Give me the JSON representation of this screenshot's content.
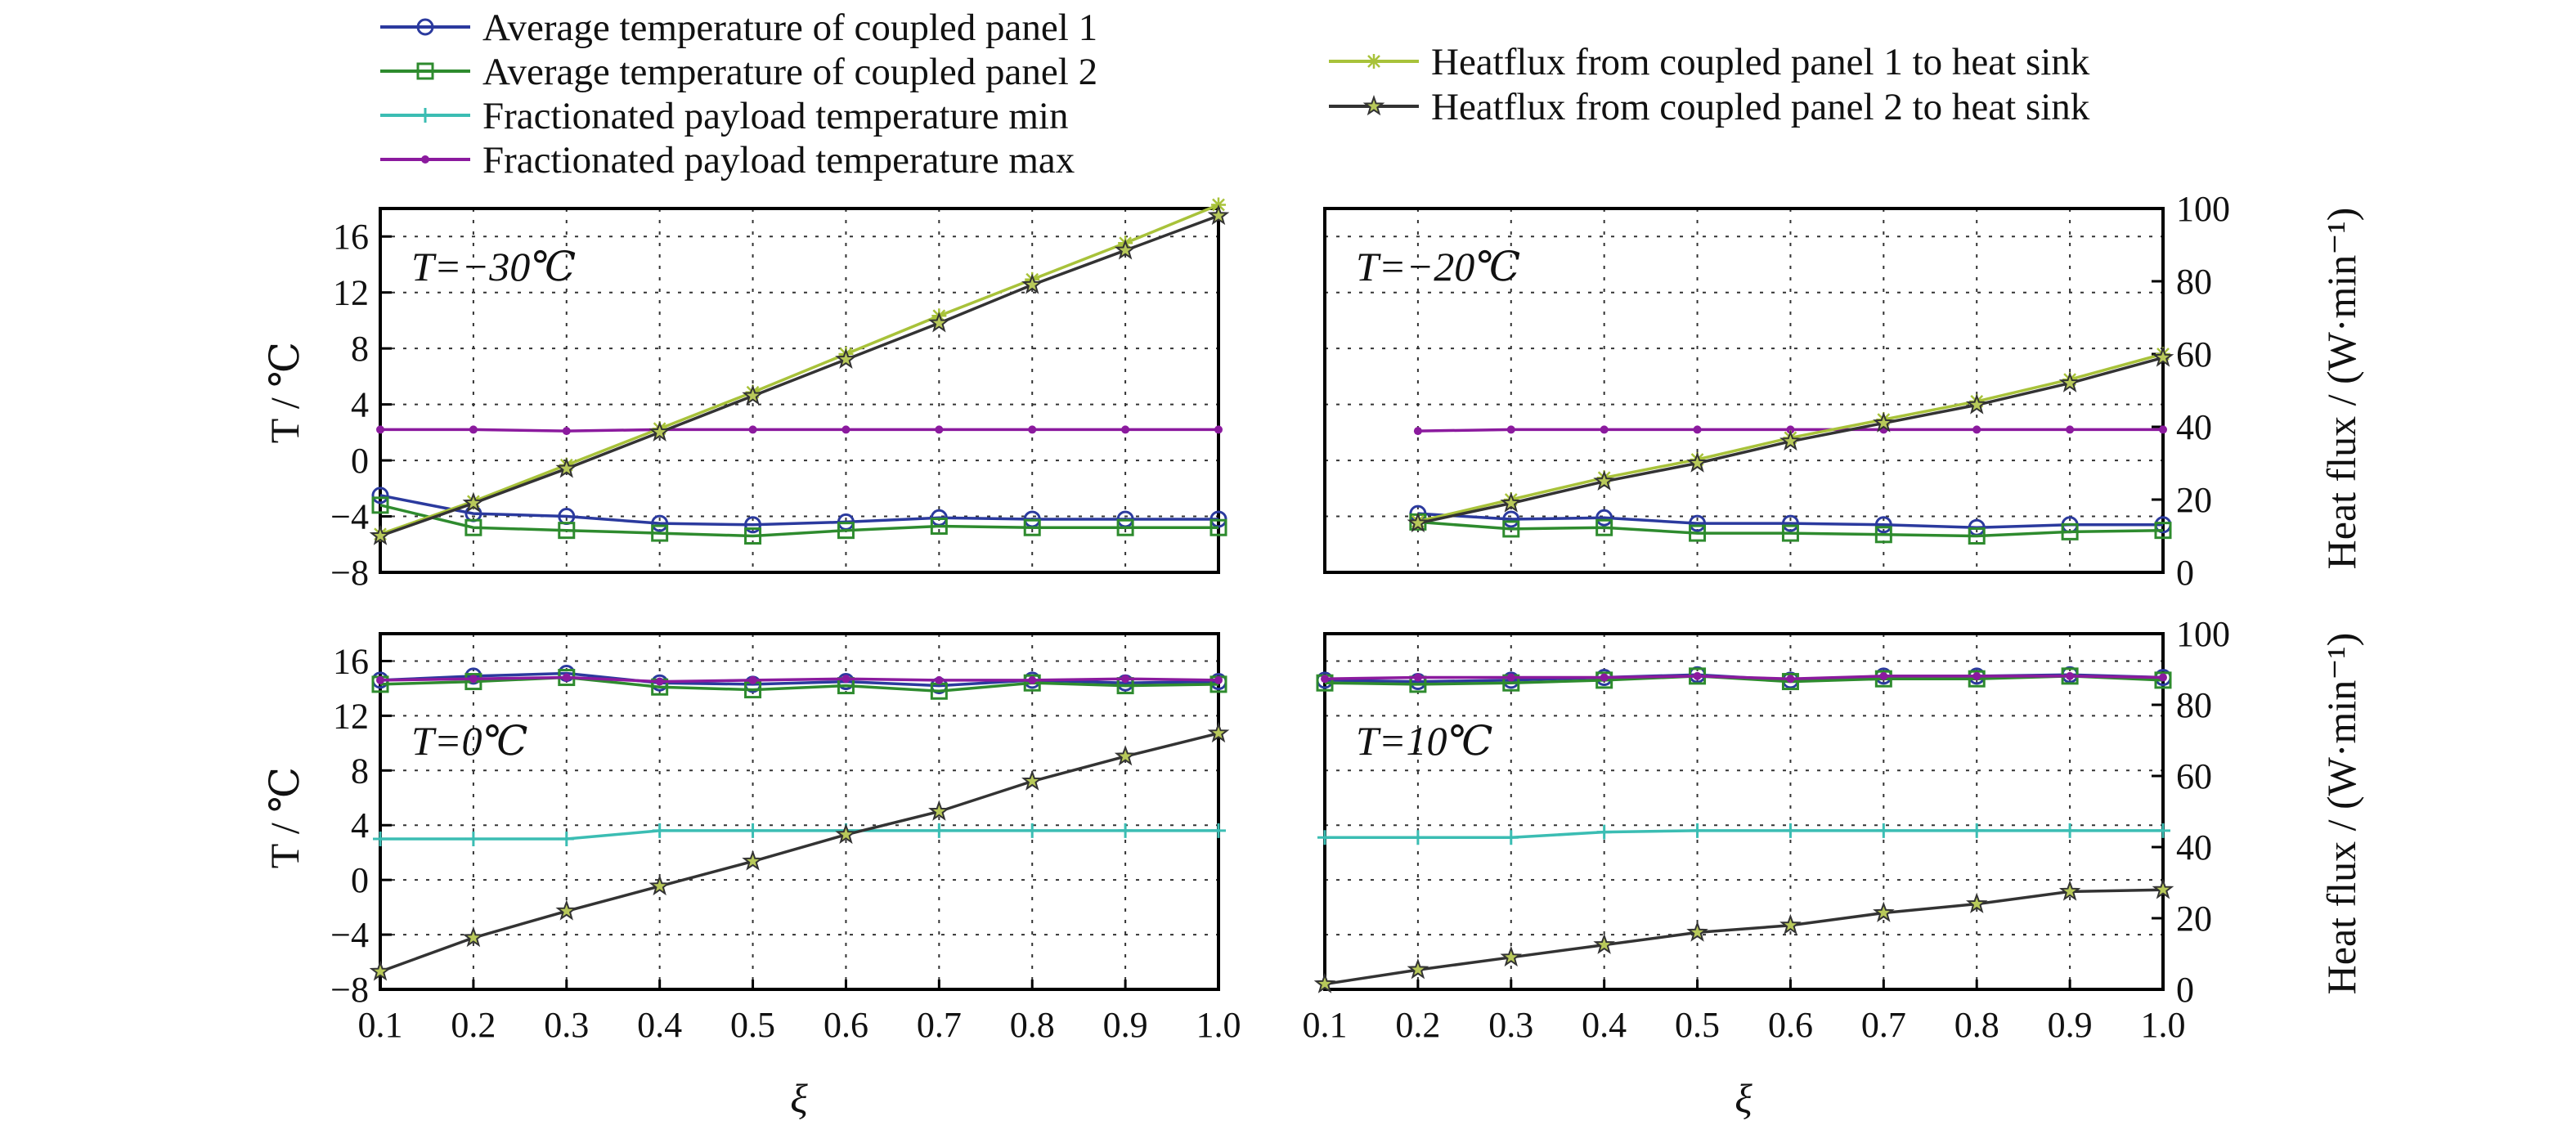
{
  "chart_data": {
    "type": "line",
    "x_label": "ξ",
    "y_label_left": "T / ℃",
    "y_label_right": "Heat flux / (W·min⁻¹)",
    "x_ticks": [
      "0.1",
      "0.2",
      "0.3",
      "0.4",
      "0.5",
      "0.6",
      "0.7",
      "0.8",
      "0.9",
      "1.0"
    ],
    "y_left_ticks": [
      "16",
      "12",
      "8",
      "4",
      "0",
      "−4",
      "−8"
    ],
    "y_right_ticks": [
      "100",
      "80",
      "60",
      "40",
      "20",
      "0"
    ],
    "xlim": [
      0.1,
      1.0
    ],
    "ylim_left": [
      -8,
      18
    ],
    "ylim_right": [
      0,
      100
    ],
    "grid": true,
    "legend_position": "top",
    "legend": [
      {
        "label": "Average temperature of coupled panel 1",
        "color": "#2b3a9e",
        "marker": "circle"
      },
      {
        "label": "Average temperature of coupled panel 2",
        "color": "#2e8b2e",
        "marker": "square"
      },
      {
        "label": "Fractionated payload temperature min",
        "color": "#3bbdb3",
        "marker": "plus"
      },
      {
        "label": "Fractionated payload temperature max",
        "color": "#8b1a9e",
        "marker": "dot"
      },
      {
        "label": "Heatflux from coupled panel 1 to heat sink",
        "color": "#a8c23a",
        "marker": "asterisk"
      },
      {
        "label": "Heatflux from coupled panel 2 to heat sink",
        "color": "#333333",
        "marker": "star"
      }
    ],
    "panels": [
      {
        "annotation": "T=−30℃",
        "x": [
          0.1,
          0.2,
          0.3,
          0.4,
          0.5,
          0.6,
          0.7,
          0.8,
          0.9,
          1.0
        ],
        "series": [
          {
            "name": "Average temperature of coupled panel 1",
            "axis": "left",
            "values": [
              -2.5,
              -3.8,
              -4.0,
              -4.5,
              -4.6,
              -4.4,
              -4.1,
              -4.2,
              -4.2,
              -4.2
            ]
          },
          {
            "name": "Average temperature of coupled panel 2",
            "axis": "left",
            "values": [
              -3.2,
              -4.8,
              -5.0,
              -5.2,
              -5.4,
              -5.0,
              -4.7,
              -4.8,
              -4.8,
              -4.8
            ]
          },
          {
            "name": "Fractionated payload temperature max",
            "axis": "left",
            "values": [
              2.2,
              2.2,
              2.1,
              2.2,
              2.2,
              2.2,
              2.2,
              2.2,
              2.2,
              2.2
            ]
          },
          {
            "name": "Heatflux from coupled panel 1 to heat sink",
            "axis": "right",
            "values": [
              10.5,
              19.5,
              29.5,
              39.5,
              49.5,
              60,
              70.5,
              80.5,
              90.5,
              101
            ]
          },
          {
            "name": "Heatflux from coupled panel 2 to heat sink",
            "axis": "right",
            "values": [
              10,
              19,
              28.5,
              38.5,
              48.5,
              58.5,
              68.5,
              79,
              88.5,
              98
            ]
          }
        ]
      },
      {
        "annotation": "T=−20℃",
        "x": [
          0.2,
          0.3,
          0.4,
          0.5,
          0.6,
          0.7,
          0.8,
          0.9,
          1.0
        ],
        "series": [
          {
            "name": "Average temperature of coupled panel 1",
            "axis": "left",
            "values": [
              -3.8,
              -4.2,
              -4.1,
              -4.5,
              -4.5,
              -4.6,
              -4.8,
              -4.6,
              -4.6
            ]
          },
          {
            "name": "Average temperature of coupled panel 2",
            "axis": "left",
            "values": [
              -4.4,
              -4.9,
              -4.8,
              -5.2,
              -5.2,
              -5.3,
              -5.4,
              -5.1,
              -5.0
            ]
          },
          {
            "name": "Fractionated payload temperature max",
            "axis": "left",
            "values": [
              2.1,
              2.2,
              2.2,
              2.2,
              2.2,
              2.2,
              2.2,
              2.2,
              2.2
            ]
          },
          {
            "name": "Heatflux from coupled panel 1 to heat sink",
            "axis": "right",
            "values": [
              14,
              20,
              26,
              31,
              37,
              42,
              47,
              53,
              60
            ]
          },
          {
            "name": "Heatflux from coupled panel 2 to heat sink",
            "axis": "right",
            "values": [
              13.5,
              19,
              25,
              30,
              36,
              41,
              46,
              52,
              59
            ]
          }
        ]
      },
      {
        "annotation": "T=0℃",
        "x": [
          0.1,
          0.2,
          0.3,
          0.4,
          0.5,
          0.6,
          0.7,
          0.8,
          0.9,
          1.0
        ],
        "series": [
          {
            "name": "Average temperature of coupled panel 1",
            "axis": "left",
            "values": [
              14.6,
              14.9,
              15.1,
              14.4,
              14.3,
              14.5,
              14.2,
              14.6,
              14.4,
              14.5
            ]
          },
          {
            "name": "Average temperature of coupled panel 2",
            "axis": "left",
            "values": [
              14.3,
              14.5,
              14.8,
              14.1,
              13.9,
              14.2,
              13.8,
              14.4,
              14.2,
              14.3
            ]
          },
          {
            "name": "Fractionated payload temperature min",
            "axis": "left",
            "values": [
              3.0,
              3.0,
              3.0,
              3.6,
              3.6,
              3.6,
              3.6,
              3.6,
              3.6,
              3.6
            ]
          },
          {
            "name": "Fractionated payload temperature max",
            "axis": "left",
            "values": [
              14.6,
              14.7,
              14.8,
              14.5,
              14.6,
              14.7,
              14.6,
              14.6,
              14.7,
              14.6
            ]
          },
          {
            "name": "Heatflux from coupled panel 2 to heat sink",
            "axis": "right",
            "values": [
              5,
              14.5,
              22,
              29,
              36,
              43.5,
              50,
              58.5,
              65.5,
              72
            ]
          }
        ]
      },
      {
        "annotation": "T=10℃",
        "x": [
          0.1,
          0.2,
          0.3,
          0.4,
          0.5,
          0.6,
          0.7,
          0.8,
          0.9,
          1.0
        ],
        "series": [
          {
            "name": "Average temperature of coupled panel 1",
            "axis": "left",
            "values": [
              14.6,
              14.5,
              14.6,
              14.8,
              15.0,
              14.6,
              14.9,
              14.9,
              15.0,
              14.8
            ]
          },
          {
            "name": "Average temperature of coupled panel 2",
            "axis": "left",
            "values": [
              14.4,
              14.3,
              14.4,
              14.6,
              14.9,
              14.5,
              14.7,
              14.7,
              14.9,
              14.6
            ]
          },
          {
            "name": "Fractionated payload temperature min",
            "axis": "left",
            "values": [
              3.1,
              3.1,
              3.1,
              3.5,
              3.6,
              3.6,
              3.6,
              3.6,
              3.6,
              3.6
            ]
          },
          {
            "name": "Fractionated payload temperature max",
            "axis": "left",
            "values": [
              14.7,
              14.8,
              14.8,
              14.8,
              14.9,
              14.7,
              14.9,
              14.9,
              14.9,
              14.8
            ]
          },
          {
            "name": "Heatflux from coupled panel 2 to heat sink",
            "axis": "right",
            "values": [
              1.5,
              5.5,
              9,
              12.5,
              16,
              18,
              21.5,
              24,
              27.5,
              28
            ]
          }
        ]
      }
    ]
  }
}
